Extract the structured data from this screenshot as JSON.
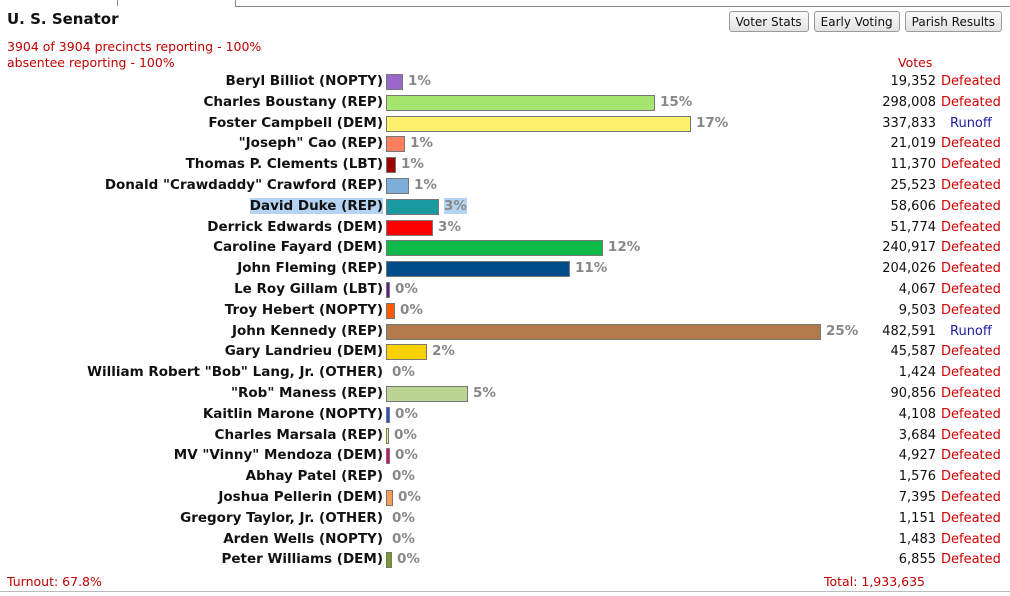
{
  "race_title": "U. S. Senator",
  "buttons": {
    "voter_stats": "Voter Stats",
    "early_voting": "Early Voting",
    "parish_results": "Parish Results"
  },
  "status": {
    "precincts": "3904 of 3904 precincts reporting - 100%",
    "absentee": "absentee reporting - 100%"
  },
  "votes_header": "Votes",
  "candidates": [
    {
      "name": "Beryl Billiot (NOPTY)",
      "pct_label": "1%",
      "pct": 1.0,
      "votes": "19,352",
      "outcome": "Defeated",
      "color": "#9966cc"
    },
    {
      "name": "Charles Boustany (REP)",
      "pct_label": "15%",
      "pct": 15.41,
      "votes": "298,008",
      "outcome": "Defeated",
      "color": "#a6e66e"
    },
    {
      "name": "Foster Campbell (DEM)",
      "pct_label": "17%",
      "pct": 17.46,
      "votes": "337,833",
      "outcome": "Runoff",
      "color": "#fdf06a"
    },
    {
      "name": "\"Joseph\" Cao (REP)",
      "pct_label": "1%",
      "pct": 1.09,
      "votes": "21,019",
      "outcome": "Defeated",
      "color": "#ff7f5f"
    },
    {
      "name": "Thomas P. Clements (LBT)",
      "pct_label": "1%",
      "pct": 0.59,
      "votes": "11,370",
      "outcome": "Defeated",
      "color": "#a00000"
    },
    {
      "name": "Donald \"Crawdaddy\" Crawford (REP)",
      "pct_label": "1%",
      "pct": 1.32,
      "votes": "25,523",
      "outcome": "Defeated",
      "color": "#7bafd9"
    },
    {
      "name": "David Duke (REP)",
      "pct_label": "3%",
      "pct": 3.03,
      "votes": "58,606",
      "outcome": "Defeated",
      "color": "#1a9aa0",
      "highlight": true
    },
    {
      "name": "Derrick Edwards (DEM)",
      "pct_label": "3%",
      "pct": 2.68,
      "votes": "51,774",
      "outcome": "Defeated",
      "color": "#ff0000"
    },
    {
      "name": "Caroline Fayard (DEM)",
      "pct_label": "12%",
      "pct": 12.46,
      "votes": "240,917",
      "outcome": "Defeated",
      "color": "#0dba4a"
    },
    {
      "name": "John Fleming (REP)",
      "pct_label": "11%",
      "pct": 10.55,
      "votes": "204,026",
      "outcome": "Defeated",
      "color": "#004d8c"
    },
    {
      "name": "Le Roy Gillam (LBT)",
      "pct_label": "0%",
      "pct": 0.21,
      "votes": "4,067",
      "outcome": "Defeated",
      "color": "#6a1a8a"
    },
    {
      "name": "Troy Hebert (NOPTY)",
      "pct_label": "0%",
      "pct": 0.49,
      "votes": "9,503",
      "outcome": "Defeated",
      "color": "#ff5a00"
    },
    {
      "name": "John Kennedy (REP)",
      "pct_label": "25%",
      "pct": 24.96,
      "votes": "482,591",
      "outcome": "Runoff",
      "color": "#b07a4a"
    },
    {
      "name": "Gary Landrieu (DEM)",
      "pct_label": "2%",
      "pct": 2.36,
      "votes": "45,587",
      "outcome": "Defeated",
      "color": "#ffd000"
    },
    {
      "name": "William Robert \"Bob\" Lang, Jr. (OTHER)",
      "pct_label": "0%",
      "pct": 0.07,
      "votes": "1,424",
      "outcome": "Defeated",
      "color": "#cccccc"
    },
    {
      "name": "\"Rob\" Maness (REP)",
      "pct_label": "5%",
      "pct": 4.7,
      "votes": "90,856",
      "outcome": "Defeated",
      "color": "#bcd493"
    },
    {
      "name": "Kaitlin Marone (NOPTY)",
      "pct_label": "0%",
      "pct": 0.21,
      "votes": "4,108",
      "outcome": "Defeated",
      "color": "#2a4fd8"
    },
    {
      "name": "Charles Marsala (REP)",
      "pct_label": "0%",
      "pct": 0.19,
      "votes": "3,684",
      "outcome": "Defeated",
      "color": "#f5ea6a"
    },
    {
      "name": "MV \"Vinny\" Mendoza (DEM)",
      "pct_label": "0%",
      "pct": 0.25,
      "votes": "4,927",
      "outcome": "Defeated",
      "color": "#e0006a"
    },
    {
      "name": "Abhay Patel (REP)",
      "pct_label": "0%",
      "pct": 0.08,
      "votes": "1,576",
      "outcome": "Defeated",
      "color": "#cccccc"
    },
    {
      "name": "Joshua Pellerin (DEM)",
      "pct_label": "0%",
      "pct": 0.38,
      "votes": "7,395",
      "outcome": "Defeated",
      "color": "#f5a050"
    },
    {
      "name": "Gregory Taylor, Jr. (OTHER)",
      "pct_label": "0%",
      "pct": 0.06,
      "votes": "1,151",
      "outcome": "Defeated",
      "color": "#cccccc"
    },
    {
      "name": "Arden Wells (NOPTY)",
      "pct_label": "0%",
      "pct": 0.08,
      "votes": "1,483",
      "outcome": "Defeated",
      "color": "#cccccc"
    },
    {
      "name": "Peter Williams (DEM)",
      "pct_label": "0%",
      "pct": 0.35,
      "votes": "6,855",
      "outcome": "Defeated",
      "color": "#7a9a2a"
    }
  ],
  "footer": {
    "turnout": "Turnout: 67.8%",
    "total": "Total: 1,933,635"
  }
}
